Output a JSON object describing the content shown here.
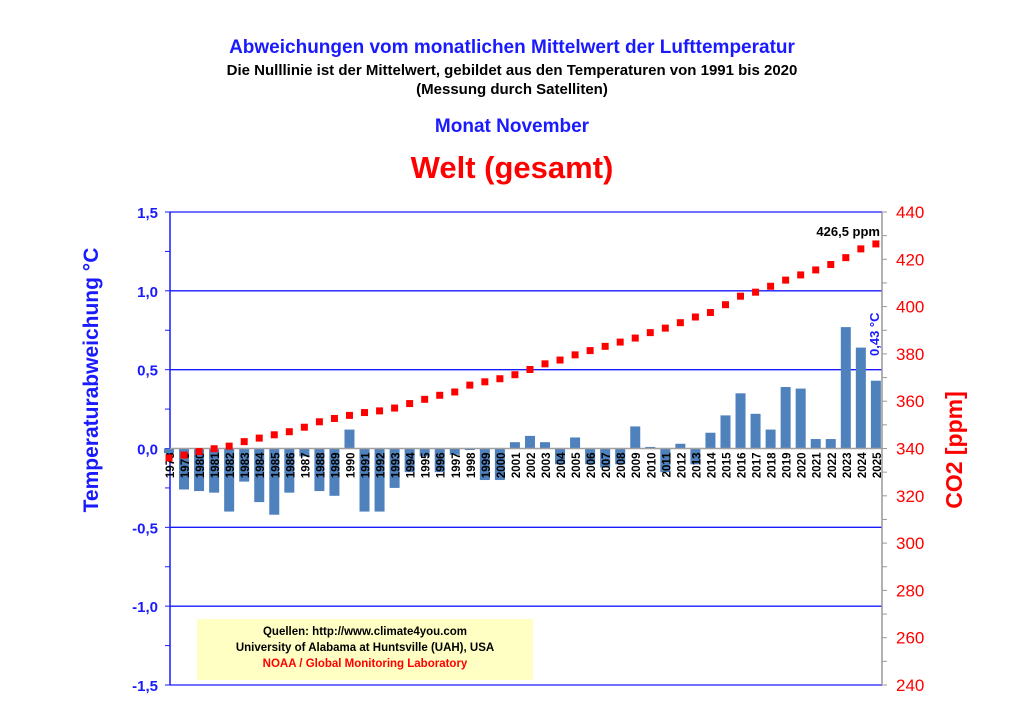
{
  "header": {
    "title": "Abweichungen vom monatlichen Mittelwert der Lufttemperatur",
    "subtitle": "Die Nulllinie ist der Mittelwert, gebildet aus den Temperaturen von 1991 bis 2020",
    "subtitle2": "(Messung durch Satelliten)",
    "month": "Monat November",
    "region": "Welt (gesamt)"
  },
  "sources": {
    "line1": "Quellen: http://www.climate4you.com",
    "line2": "University of Alabama at Huntsville (UAH), USA",
    "line3": "NOAA / Global Monitoring Laboratory"
  },
  "chart_data": {
    "type": "bar",
    "title": "Welt (gesamt)",
    "ylabel": "Temperaturabweichung °C",
    "y2label": "CO2 [ppm]",
    "ylim": [
      -1.5,
      1.5
    ],
    "y2lim": [
      240,
      440
    ],
    "yticks": [
      "1,5",
      "1,0",
      "0,5",
      "0,0",
      "-0,5",
      "-1,0",
      "-1,5"
    ],
    "y2ticks": [
      "440",
      "420",
      "400",
      "380",
      "360",
      "340",
      "320",
      "300",
      "280",
      "260",
      "240"
    ],
    "colors": {
      "bars": "#4f81bd",
      "co2": "#ff0000",
      "grid": "#1a1aff"
    },
    "annotations": {
      "co2_last": "426,5 ppm",
      "temp_last": "0,43 °C"
    },
    "categories": [
      "1978",
      "1979",
      "1980",
      "1981",
      "1982",
      "1983",
      "1984",
      "1985",
      "1986",
      "1987",
      "1988",
      "1989",
      "1990",
      "1991",
      "1992",
      "1993",
      "1994",
      "1995",
      "1996",
      "1997",
      "1998",
      "1999",
      "2000",
      "2001",
      "2002",
      "2003",
      "2004",
      "2005",
      "2006",
      "2007",
      "2008",
      "2009",
      "2010",
      "2011",
      "2012",
      "2013",
      "2014",
      "2015",
      "2016",
      "2017",
      "2018",
      "2019",
      "2020",
      "2021",
      "2022",
      "2023",
      "2024",
      "2025"
    ],
    "series": [
      {
        "name": "Temperaturabweichung",
        "axis": "left",
        "type": "bar",
        "values": [
          -0.03,
          -0.26,
          -0.27,
          -0.28,
          -0.4,
          -0.21,
          -0.34,
          -0.42,
          -0.28,
          -0.05,
          -0.27,
          -0.3,
          0.12,
          -0.4,
          -0.4,
          -0.25,
          -0.15,
          -0.05,
          -0.15,
          -0.04,
          -0.01,
          -0.2,
          -0.2,
          0.04,
          0.08,
          0.04,
          -0.1,
          0.07,
          -0.1,
          -0.12,
          -0.1,
          0.14,
          0.01,
          -0.15,
          0.03,
          -0.1,
          0.1,
          0.21,
          0.35,
          0.22,
          0.12,
          0.39,
          0.38,
          0.06,
          0.06,
          0.77,
          0.64,
          0.43
        ]
      },
      {
        "name": "CO2",
        "axis": "right",
        "type": "scatter",
        "values": [
          336.0,
          337.2,
          338.7,
          339.9,
          341.0,
          342.9,
          344.4,
          345.8,
          347.1,
          349.0,
          351.3,
          352.7,
          354.0,
          355.2,
          355.9,
          357.1,
          359.0,
          360.8,
          362.5,
          363.9,
          366.8,
          368.2,
          369.5,
          371.2,
          373.4,
          375.8,
          377.4,
          379.6,
          381.4,
          383.2,
          385.0,
          386.7,
          389.0,
          390.9,
          393.2,
          395.6,
          397.5,
          400.8,
          404.4,
          406.1,
          408.6,
          411.2,
          413.4,
          415.5,
          417.8,
          420.7,
          424.4,
          426.5
        ]
      }
    ]
  }
}
